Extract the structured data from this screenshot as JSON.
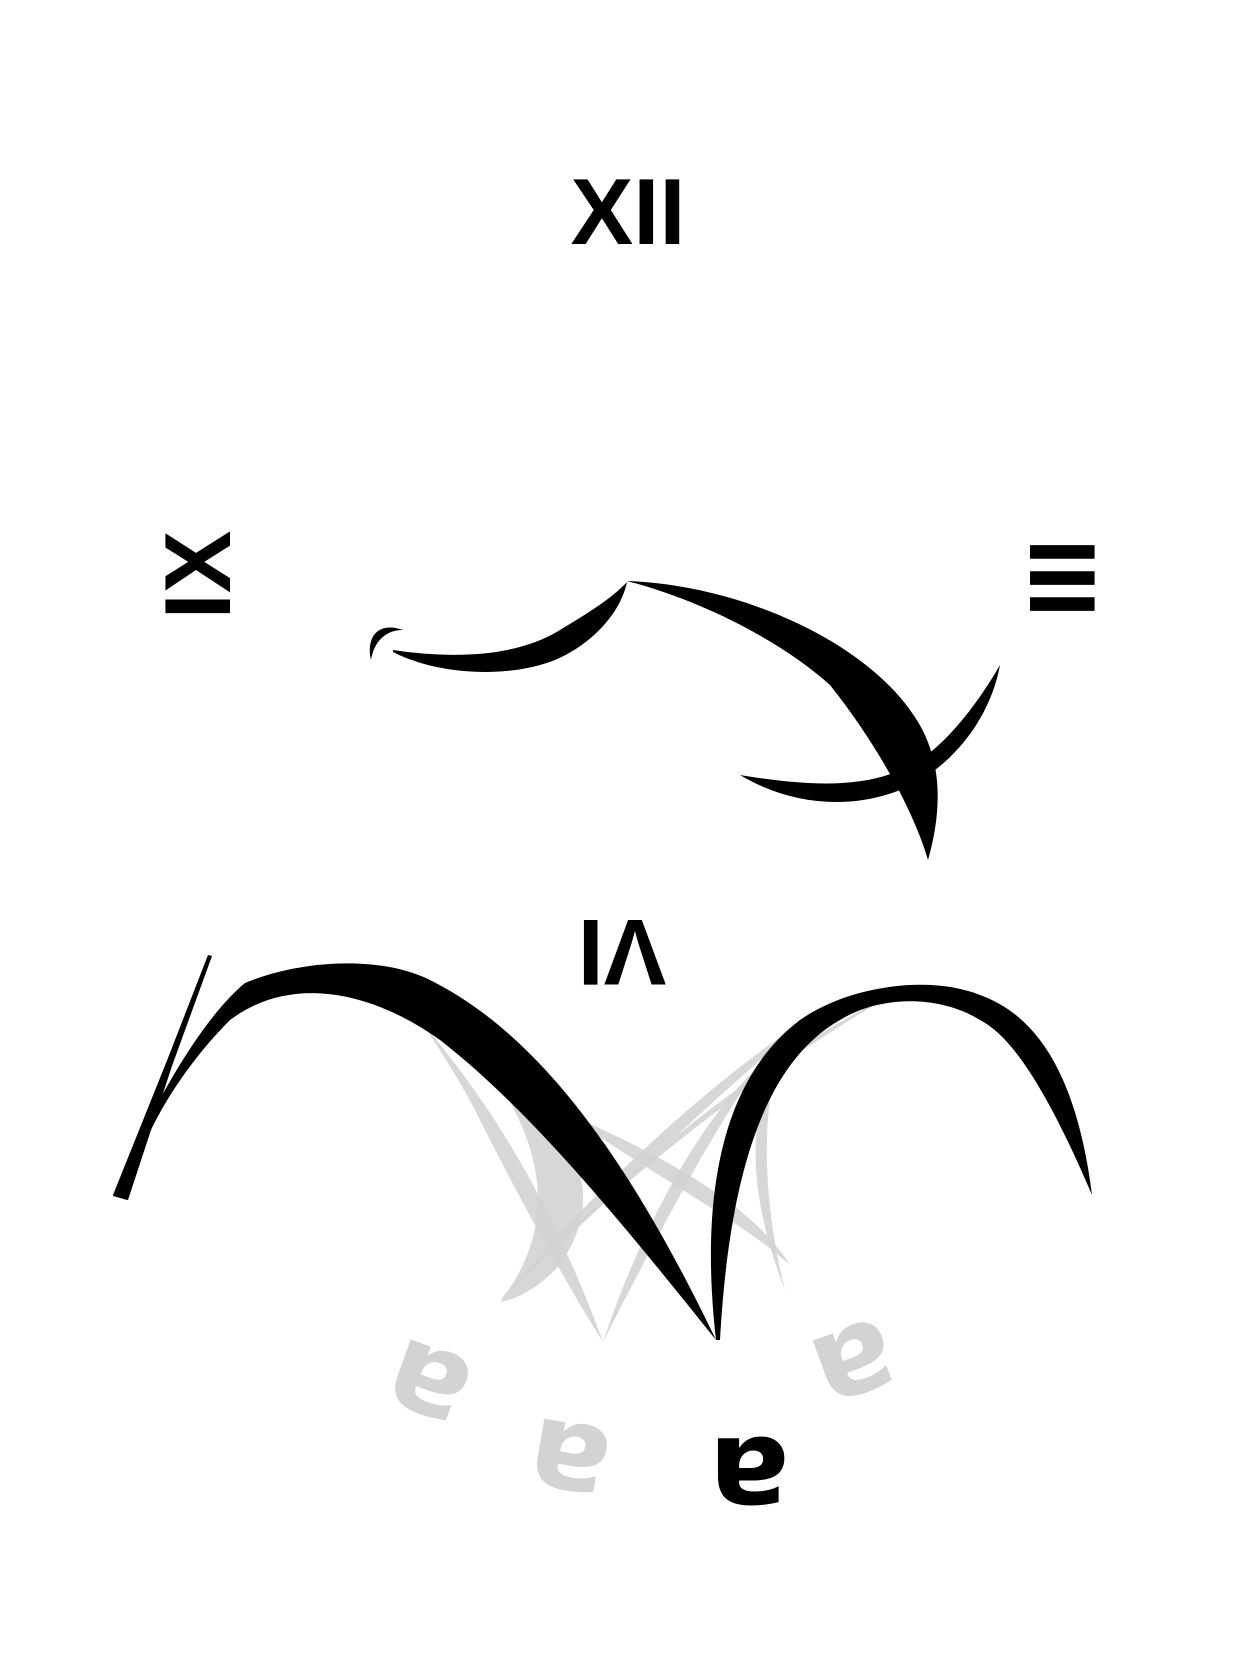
{
  "numerals": {
    "twelve": "XII",
    "three": "III",
    "six": "VI",
    "nine": "IX"
  },
  "glyphs": {
    "ghost_1": "a",
    "ghost_2": "a",
    "ghost_3": "a",
    "solid": "a"
  },
  "colors": {
    "ink": "#000000",
    "ghost": "#d3d3d3",
    "background": "#ffffff"
  }
}
